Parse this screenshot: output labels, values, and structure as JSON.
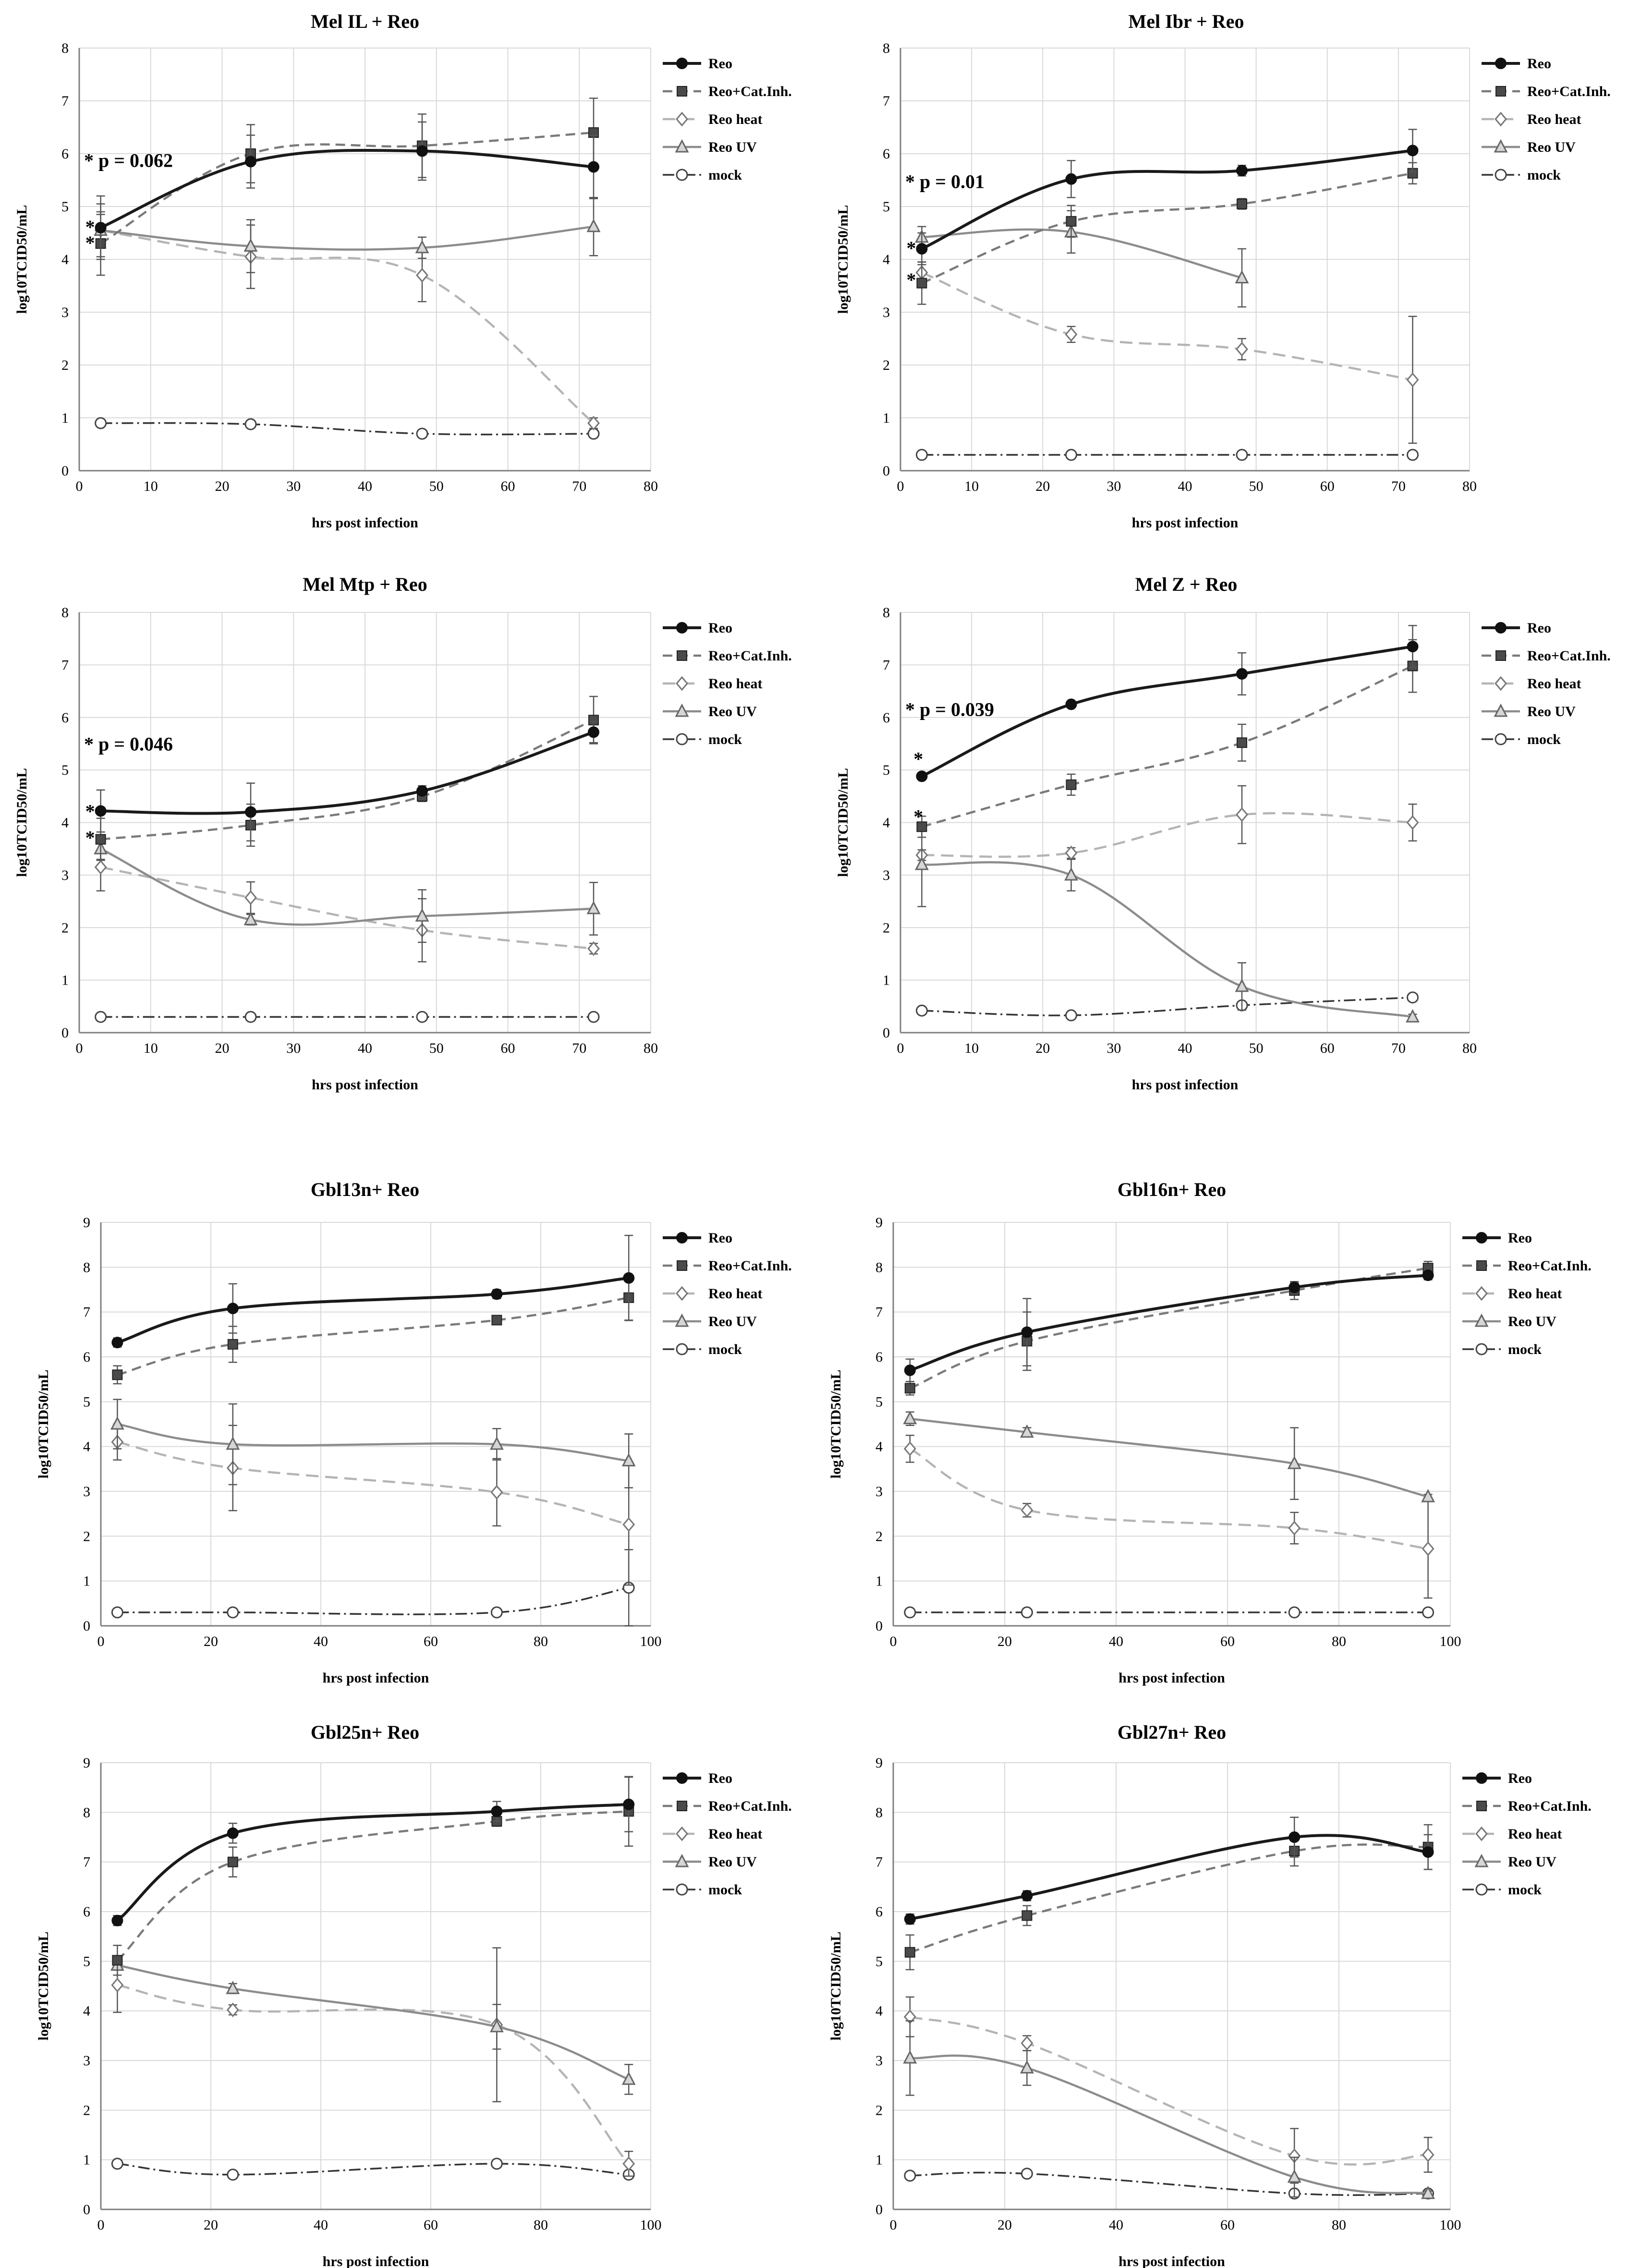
{
  "figure": {
    "series_styles": [
      {
        "key": "reo",
        "color": "#1a1a1a",
        "dash": "",
        "width": 6,
        "marker": "circle-filled",
        "mfill": "#1a1a1a"
      },
      {
        "key": "cat",
        "color": "#7a7a7a",
        "dash": "20,12",
        "width": 4.5,
        "marker": "square-dark",
        "mfill": "#4a4a4a"
      },
      {
        "key": "heat",
        "color": "#b4b4b4",
        "dash": "26,14",
        "width": 4.5,
        "marker": "diamond-open",
        "mfill": "#ffffff"
      },
      {
        "key": "uv",
        "color": "#8c8c8c",
        "dash": "",
        "width": 4.5,
        "marker": "triangle",
        "mfill": "#d0d0d0"
      },
      {
        "key": "mock",
        "color": "#333333",
        "dash": "24,8,4,8",
        "width": 3.5,
        "marker": "circle-open",
        "mfill": "#ffffff"
      }
    ]
  },
  "chart_data": [
    {
      "type": "line",
      "title": "Mel IL + Reo",
      "xlabel": "hrs post infection",
      "ylabel": "log10TCID50/mL",
      "xlim": [
        0,
        80
      ],
      "xticks": [
        0,
        10,
        20,
        30,
        40,
        50,
        60,
        70,
        80
      ],
      "ylim": [
        0,
        8
      ],
      "yticks": [
        0,
        1,
        2,
        3,
        4,
        5,
        6,
        7,
        8
      ],
      "annotation": "* p = 0.062",
      "stars": [
        {
          "x": 3,
          "y": 4.6
        },
        {
          "x": 3,
          "y": 4.3
        }
      ],
      "series": [
        {
          "name": "Reo",
          "x": [
            3,
            24,
            48,
            72
          ],
          "y": [
            4.6,
            5.85,
            6.05,
            5.75
          ],
          "err": [
            0.6,
            0.5,
            0.55,
            0.6
          ]
        },
        {
          "name": "Reo+Cat.Inh.",
          "x": [
            3,
            24,
            48,
            72
          ],
          "y": [
            4.3,
            6.0,
            6.15,
            6.4
          ],
          "err": [
            0.6,
            0.55,
            0.6,
            0.65
          ]
        },
        {
          "name": "Reo heat",
          "x": [
            3,
            24,
            48,
            72
          ],
          "y": [
            4.55,
            4.05,
            3.7,
            0.9
          ],
          "err": [
            0.5,
            0.6,
            0.5,
            0.1
          ]
        },
        {
          "name": "Reo UV",
          "x": [
            3,
            24,
            48,
            72
          ],
          "y": [
            4.55,
            4.25,
            4.22,
            4.62
          ],
          "err": [
            0.3,
            0.5,
            0.2,
            0.55
          ]
        },
        {
          "name": "mock",
          "x": [
            3,
            24,
            48,
            72
          ],
          "y": [
            0.9,
            0.88,
            0.7,
            0.7
          ],
          "err": [
            0,
            0,
            0,
            0
          ]
        }
      ]
    },
    {
      "type": "line",
      "title": "Mel Ibr + Reo",
      "xlabel": "hrs post infection",
      "ylabel": "log10TCID50/mL",
      "xlim": [
        0,
        80
      ],
      "xticks": [
        0,
        10,
        20,
        30,
        40,
        50,
        60,
        70,
        80
      ],
      "ylim": [
        0,
        8
      ],
      "yticks": [
        0,
        1,
        2,
        3,
        4,
        5,
        6,
        7,
        8
      ],
      "annotation": "* p = 0.01",
      "stars": [
        {
          "x": 3,
          "y": 4.2
        },
        {
          "x": 3,
          "y": 3.6
        }
      ],
      "series": [
        {
          "name": "Reo",
          "x": [
            3,
            24,
            48,
            72
          ],
          "y": [
            4.2,
            5.52,
            5.68,
            6.06
          ],
          "err": [
            0.3,
            0.35,
            0.1,
            0.4
          ]
        },
        {
          "name": "Reo+Cat.Inh.",
          "x": [
            3,
            24,
            48,
            72
          ],
          "y": [
            3.55,
            4.72,
            5.05,
            5.63
          ],
          "err": [
            0.4,
            0.3,
            0.1,
            0.2
          ]
        },
        {
          "name": "Reo heat",
          "x": [
            3,
            24,
            48,
            72
          ],
          "y": [
            3.75,
            2.58,
            2.3,
            1.72
          ],
          "err": [
            0.2,
            0.15,
            0.2,
            1.2
          ]
        },
        {
          "name": "Reo UV",
          "x": [
            3,
            24,
            48,
            72
          ],
          "y": [
            4.42,
            4.52,
            3.65,
            null
          ],
          "err": [
            0.2,
            0.4,
            0.55,
            0
          ]
        },
        {
          "name": "mock",
          "x": [
            3,
            24,
            48,
            72
          ],
          "y": [
            0.3,
            0.3,
            0.3,
            0.3
          ],
          "err": [
            0,
            0,
            0,
            0
          ]
        }
      ]
    },
    {
      "type": "line",
      "title": "Mel Mtp + Reo",
      "xlabel": "hrs post infection",
      "ylabel": "log10TCID50/mL",
      "xlim": [
        0,
        80
      ],
      "xticks": [
        0,
        10,
        20,
        30,
        40,
        50,
        60,
        70,
        80
      ],
      "ylim": [
        0,
        8
      ],
      "yticks": [
        0,
        1,
        2,
        3,
        4,
        5,
        6,
        7,
        8
      ],
      "annotation": "* p = 0.046",
      "stars": [
        {
          "x": 3,
          "y": 4.2
        },
        {
          "x": 3,
          "y": 3.7
        }
      ],
      "series": [
        {
          "name": "Reo",
          "x": [
            3,
            24,
            48,
            72
          ],
          "y": [
            4.22,
            4.2,
            4.6,
            5.72
          ],
          "err": [
            0.4,
            0.55,
            0.1,
            0.2
          ]
        },
        {
          "name": "Reo+Cat.Inh.",
          "x": [
            3,
            24,
            48,
            72
          ],
          "y": [
            3.68,
            3.95,
            4.5,
            5.95
          ],
          "err": [
            0.4,
            0.4,
            0.1,
            0.45
          ]
        },
        {
          "name": "Reo heat",
          "x": [
            3,
            24,
            48,
            72
          ],
          "y": [
            3.15,
            2.57,
            1.95,
            1.6
          ],
          "err": [
            0.45,
            0.3,
            0.6,
            0.1
          ]
        },
        {
          "name": "Reo UV",
          "x": [
            3,
            24,
            48,
            72
          ],
          "y": [
            3.5,
            2.15,
            2.22,
            2.36
          ],
          "err": [
            0.2,
            0.1,
            0.5,
            0.5
          ]
        },
        {
          "name": "mock",
          "x": [
            3,
            24,
            48,
            72
          ],
          "y": [
            0.3,
            0.3,
            0.3,
            0.3
          ],
          "err": [
            0,
            0,
            0,
            0
          ]
        }
      ]
    },
    {
      "type": "line",
      "title": "Mel Z + Reo",
      "xlabel": "hrs post infection",
      "ylabel": "log10TCID50/mL",
      "xlim": [
        0,
        80
      ],
      "xticks": [
        0,
        10,
        20,
        30,
        40,
        50,
        60,
        70,
        80
      ],
      "ylim": [
        0,
        8
      ],
      "yticks": [
        0,
        1,
        2,
        3,
        4,
        5,
        6,
        7,
        8
      ],
      "annotation": "* p = 0.039",
      "stars": [
        {
          "x": 4,
          "y": 5.2
        },
        {
          "x": 4,
          "y": 4.1
        }
      ],
      "series": [
        {
          "name": "Reo",
          "x": [
            3,
            24,
            48,
            72
          ],
          "y": [
            4.88,
            6.25,
            6.83,
            7.35
          ],
          "err": [
            0.05,
            0.05,
            0.4,
            0.4
          ]
        },
        {
          "name": "Reo+Cat.Inh.",
          "x": [
            3,
            24,
            48,
            72
          ],
          "y": [
            3.92,
            4.72,
            5.52,
            6.98
          ],
          "err": [
            0.2,
            0.2,
            0.35,
            0.5
          ]
        },
        {
          "name": "Reo heat",
          "x": [
            3,
            24,
            48,
            72
          ],
          "y": [
            3.38,
            3.42,
            4.15,
            4.0
          ],
          "err": [
            0.1,
            0.1,
            0.55,
            0.35
          ]
        },
        {
          "name": "Reo UV",
          "x": [
            3,
            24,
            48,
            72
          ],
          "y": [
            3.2,
            3.0,
            0.88,
            0.3
          ],
          "err": [
            0.8,
            0.3,
            0.45,
            0.05
          ]
        },
        {
          "name": "mock",
          "x": [
            3,
            24,
            48,
            72
          ],
          "y": [
            0.42,
            0.33,
            0.52,
            0.67
          ],
          "err": [
            0,
            0,
            0,
            0
          ]
        }
      ]
    },
    {
      "type": "line",
      "title": "Gbl13n+ Reo",
      "xlabel": "hrs post infection",
      "ylabel": "log10TCID50/mL",
      "xlim": [
        0,
        100
      ],
      "xticks": [
        0,
        20,
        40,
        60,
        80,
        100
      ],
      "ylim": [
        0,
        9
      ],
      "yticks": [
        0,
        1,
        2,
        3,
        4,
        5,
        6,
        7,
        8,
        9
      ],
      "annotation": "",
      "stars": [],
      "series": [
        {
          "name": "Reo",
          "x": [
            3,
            24,
            72,
            96
          ],
          "y": [
            6.32,
            7.08,
            7.4,
            7.76
          ],
          "err": [
            0.1,
            0.55,
            0.1,
            0.95
          ]
        },
        {
          "name": "Reo+Cat.Inh.",
          "x": [
            3,
            24,
            72,
            96
          ],
          "y": [
            5.6,
            6.28,
            6.82,
            7.32
          ],
          "err": [
            0.2,
            0.4,
            0.1,
            0.5
          ]
        },
        {
          "name": "Reo heat",
          "x": [
            3,
            24,
            72,
            96
          ],
          "y": [
            4.1,
            3.52,
            2.98,
            2.26
          ],
          "err": [
            0.4,
            0.95,
            0.75,
            1.35
          ]
        },
        {
          "name": "Reo UV",
          "x": [
            3,
            24,
            72,
            96
          ],
          "y": [
            4.5,
            4.05,
            4.05,
            3.68
          ],
          "err": [
            0.55,
            0.9,
            0.35,
            0.6
          ]
        },
        {
          "name": "mock",
          "x": [
            3,
            24,
            72,
            96
          ],
          "y": [
            0.3,
            0.3,
            0.3,
            0.85
          ],
          "err": [
            0,
            0,
            0,
            0.85
          ]
        }
      ]
    },
    {
      "type": "line",
      "title": "Gbl16n+ Reo",
      "xlabel": "hrs post infection",
      "ylabel": "log10TCID50/mL",
      "xlim": [
        0,
        100
      ],
      "xticks": [
        0,
        20,
        40,
        60,
        80,
        100
      ],
      "ylim": [
        0,
        9
      ],
      "yticks": [
        0,
        1,
        2,
        3,
        4,
        5,
        6,
        7,
        8,
        9
      ],
      "annotation": "",
      "stars": [],
      "series": [
        {
          "name": "Reo",
          "x": [
            3,
            24,
            72,
            96
          ],
          "y": [
            5.7,
            6.55,
            7.55,
            7.82
          ],
          "err": [
            0.25,
            0.75,
            0.1,
            0.1
          ]
        },
        {
          "name": "Reo+Cat.Inh.",
          "x": [
            3,
            24,
            72,
            96
          ],
          "y": [
            5.3,
            6.35,
            7.48,
            7.98
          ],
          "err": [
            0.15,
            0.65,
            0.2,
            0.15
          ]
        },
        {
          "name": "Reo heat",
          "x": [
            3,
            24,
            72,
            96
          ],
          "y": [
            3.95,
            2.58,
            2.18,
            1.72
          ],
          "err": [
            0.3,
            0.15,
            0.35,
            1.1
          ]
        },
        {
          "name": "Reo UV",
          "x": [
            3,
            24,
            72,
            96
          ],
          "y": [
            4.62,
            4.32,
            3.62,
            2.88
          ],
          "err": [
            0.15,
            0.1,
            0.8,
            0.05
          ]
        },
        {
          "name": "mock",
          "x": [
            3,
            24,
            72,
            96
          ],
          "y": [
            0.3,
            0.3,
            0.3,
            0.3
          ],
          "err": [
            0,
            0,
            0,
            0
          ]
        }
      ]
    },
    {
      "type": "line",
      "title": "Gbl25n+ Reo",
      "xlabel": "hrs post infection",
      "ylabel": "log10TCID50/mL",
      "xlim": [
        0,
        100
      ],
      "xticks": [
        0,
        20,
        40,
        60,
        80,
        100
      ],
      "ylim": [
        0,
        9
      ],
      "yticks": [
        0,
        1,
        2,
        3,
        4,
        5,
        6,
        7,
        8,
        9
      ],
      "annotation": "",
      "stars": [],
      "series": [
        {
          "name": "Reo",
          "x": [
            3,
            24,
            72,
            96
          ],
          "y": [
            5.82,
            7.58,
            8.02,
            8.16
          ],
          "err": [
            0.1,
            0.2,
            0.2,
            0.55
          ]
        },
        {
          "name": "Reo+Cat.Inh.",
          "x": [
            3,
            24,
            72,
            96
          ],
          "y": [
            5.02,
            7.0,
            7.82,
            8.02
          ],
          "err": [
            0.3,
            0.3,
            0.1,
            0.7
          ]
        },
        {
          "name": "Reo heat",
          "x": [
            3,
            24,
            72,
            96
          ],
          "y": [
            4.52,
            4.02,
            3.72,
            0.92
          ],
          "err": [
            0.55,
            0.1,
            1.55,
            0.25
          ]
        },
        {
          "name": "Reo UV",
          "x": [
            3,
            24,
            72,
            96
          ],
          "y": [
            4.92,
            4.45,
            3.68,
            2.62
          ],
          "err": [
            0.1,
            0.1,
            0.45,
            0.3
          ]
        },
        {
          "name": "mock",
          "x": [
            3,
            24,
            72,
            96
          ],
          "y": [
            0.92,
            0.7,
            0.92,
            0.7
          ],
          "err": [
            0,
            0,
            0,
            0
          ]
        }
      ]
    },
    {
      "type": "line",
      "title": "Gbl27n+ Reo",
      "xlabel": "hrs post infection",
      "ylabel": "log10TCID50/mL",
      "xlim": [
        0,
        100
      ],
      "xticks": [
        0,
        20,
        40,
        60,
        80,
        100
      ],
      "ylim": [
        0,
        9
      ],
      "yticks": [
        0,
        1,
        2,
        3,
        4,
        5,
        6,
        7,
        8,
        9
      ],
      "annotation": "",
      "stars": [],
      "series": [
        {
          "name": "Reo",
          "x": [
            3,
            24,
            72,
            96
          ],
          "y": [
            5.85,
            6.32,
            7.5,
            7.2
          ],
          "err": [
            0.1,
            0.1,
            0.4,
            0.35
          ]
        },
        {
          "name": "Reo+Cat.Inh.",
          "x": [
            3,
            24,
            72,
            96
          ],
          "y": [
            5.18,
            5.92,
            7.22,
            7.3
          ],
          "err": [
            0.35,
            0.2,
            0.3,
            0.45
          ]
        },
        {
          "name": "Reo heat",
          "x": [
            3,
            24,
            72,
            96
          ],
          "y": [
            3.88,
            3.35,
            1.08,
            1.1
          ],
          "err": [
            0.4,
            0.15,
            0.55,
            0.35
          ]
        },
        {
          "name": "Reo UV",
          "x": [
            3,
            24,
            72,
            96
          ],
          "y": [
            3.05,
            2.85,
            0.65,
            0.32
          ],
          "err": [
            0.75,
            0.35,
            0.4,
            0.05
          ]
        },
        {
          "name": "mock",
          "x": [
            3,
            24,
            72,
            96
          ],
          "y": [
            0.68,
            0.72,
            0.32,
            0.32
          ],
          "err": [
            0,
            0,
            0,
            0
          ]
        }
      ]
    }
  ]
}
